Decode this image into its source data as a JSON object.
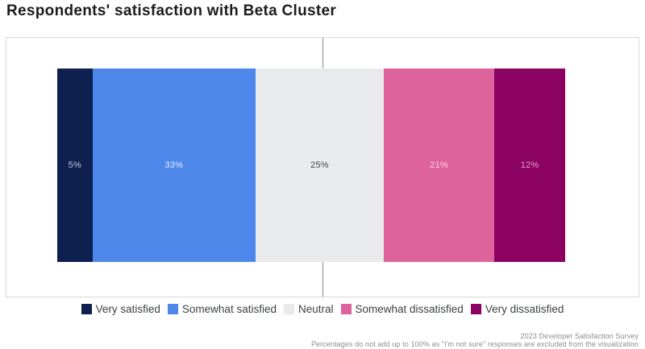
{
  "title": "Respondents' satisfaction with Beta Cluster",
  "chart_data": {
    "type": "bar",
    "subtype": "horizontal-stacked-single-bar",
    "title": "Respondents' satisfaction with Beta Cluster",
    "categories": [
      "Very satisfied",
      "Somewhat satisfied",
      "Neutral",
      "Somewhat dissatisfied",
      "Very dissatisfied"
    ],
    "values": [
      5,
      33,
      25,
      21,
      12
    ],
    "labels": [
      "5%",
      "33%",
      "25%",
      "21%",
      "12%"
    ],
    "colors": [
      "#0e2050",
      "#4d87ea",
      "#e8eaec",
      "#de639c",
      "#8c0262"
    ],
    "label_colors": [
      "#c5cbd8",
      "#e7eefc",
      "#45464c",
      "#f6d0e2",
      "#e49cc6"
    ],
    "axis": {
      "range_percent": [
        0,
        100
      ],
      "gridline_at_percent": 50,
      "gridline_color": "#8c8c8c"
    },
    "legend_position": "bottom",
    "note": "Percentages do not add up to 100% as \"I'm not sure\" responses are excluded from the visualization"
  },
  "legend": {
    "items": [
      {
        "label": "Very satisfied",
        "color": "#0e2050"
      },
      {
        "label": "Somewhat satisfied",
        "color": "#4d87ea"
      },
      {
        "label": "Neutral",
        "color": "#e8eaec"
      },
      {
        "label": "Somewhat dissatisfied",
        "color": "#de639c"
      },
      {
        "label": "Very dissatisfied",
        "color": "#8c0262"
      }
    ]
  },
  "footer": {
    "line1": "2023 Developer Satisfaction Survey",
    "line2": "Percentages do not add up to 100% as \"I'm not sure\" responses are excluded from the visualization"
  }
}
